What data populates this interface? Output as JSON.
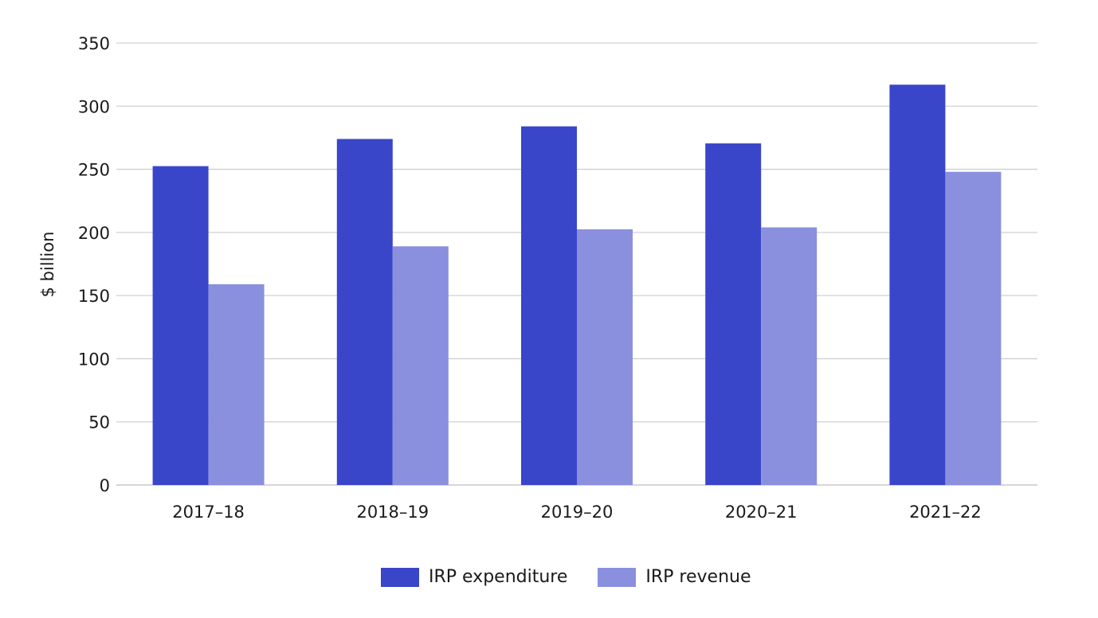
{
  "chart_data": {
    "type": "bar",
    "title": "",
    "xlabel": "",
    "ylabel": "$ billion",
    "ylim": [
      0,
      350
    ],
    "yticks": [
      0,
      50,
      100,
      150,
      200,
      250,
      300,
      350
    ],
    "grid": true,
    "legend_position": "bottom-center",
    "categories": [
      "2017–18",
      "2018–19",
      "2019–20",
      "2020–21",
      "2021–22"
    ],
    "series": [
      {
        "name": "IRP expenditure",
        "color": "#3946C9",
        "values": [
          252.5,
          274,
          284,
          270.5,
          317
        ]
      },
      {
        "name": "IRP revenue",
        "color": "#8A90DE",
        "values": [
          159,
          189,
          202.5,
          204,
          248
        ]
      }
    ]
  }
}
